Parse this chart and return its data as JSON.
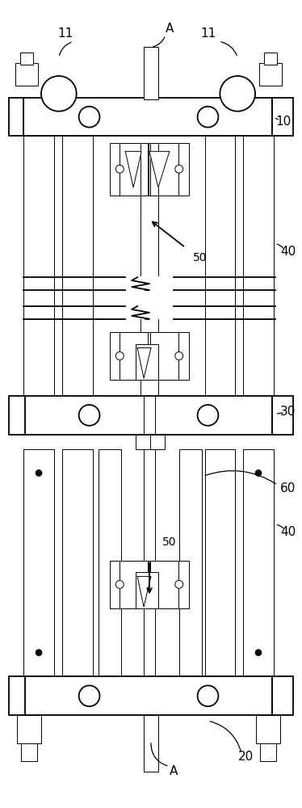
{
  "bg_color": "#ffffff",
  "lc": "#000000",
  "lw": 1.3,
  "lw_thin": 0.7,
  "fig_w": 3.74,
  "fig_h": 10.0,
  "dpi": 100
}
